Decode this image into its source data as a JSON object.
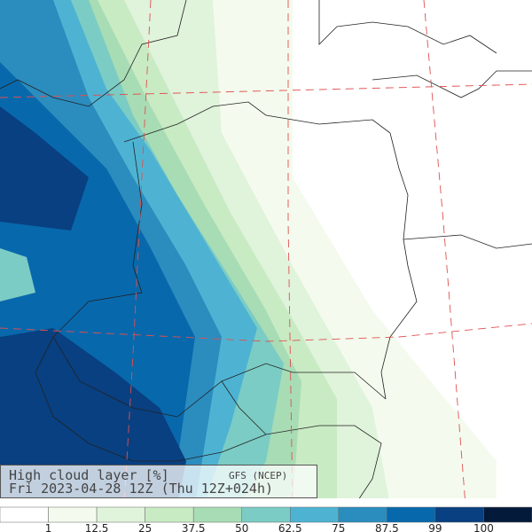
{
  "title": "High cloud layer  [%]",
  "model": "GFS (NCEP)",
  "valid_time": "Fri 2023-04-28 12Z (Thu 12Z+024h)",
  "colorbar": {
    "colors": [
      "#ffffff",
      "#f4fbee",
      "#e0f3db",
      "#c8ebc4",
      "#a8dcb5",
      "#7bccc4",
      "#4eb3d3",
      "#2b8cbe",
      "#0868ac",
      "#084081",
      "#041a3a"
    ],
    "labels": [
      "1",
      "12.5",
      "25",
      "37.5",
      "50",
      "62.5",
      "75",
      "87.5",
      "99",
      "100"
    ]
  }
}
